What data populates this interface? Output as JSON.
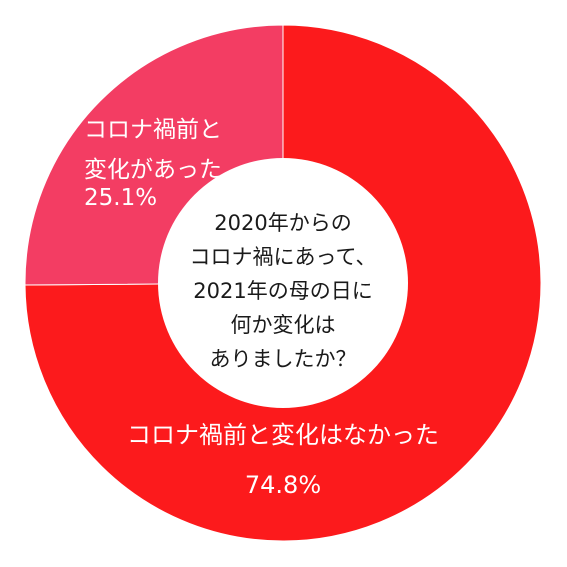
{
  "chart_data": {
    "type": "pie",
    "variant": "donut",
    "center_text": [
      "2020年からの",
      "コロナ禍にあって、",
      "2021年の母の日に",
      "何か変化は",
      "ありましたか？"
    ],
    "slices": [
      {
        "name": "コロナ禍前と変化はなかった",
        "value": 74.8,
        "label_lines": [
          "コロナ禍前と変化はなかった"
        ],
        "value_label": "74.8%",
        "color": "#fc1a1c"
      },
      {
        "name": "コロナ禍前と変化があった",
        "value": 25.1,
        "label_lines": [
          "コロナ禍前と",
          "変化があった"
        ],
        "value_label": "25.1%",
        "color": "#f33d63"
      }
    ],
    "start_angle_deg": 0,
    "direction": "clockwise"
  }
}
